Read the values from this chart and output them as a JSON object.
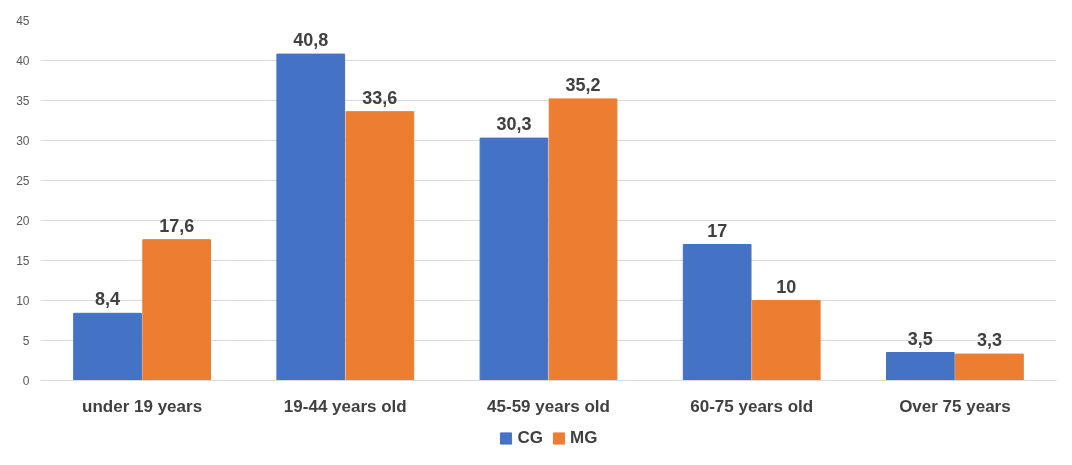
{
  "chart_data": {
    "type": "bar",
    "categories": [
      "under 19 years",
      "19-44 years old",
      "45-59 years old",
      "60-75 years old",
      "Over 75 years"
    ],
    "series": [
      {
        "name": "CG",
        "color": "#4472c4",
        "values": [
          8.4,
          40.8,
          30.3,
          17,
          3.5
        ],
        "value_labels": [
          "8,4",
          "40,8",
          "30,3",
          "17",
          "3,5"
        ]
      },
      {
        "name": "MG",
        "color": "#ed7d31",
        "values": [
          17.6,
          33.6,
          35.2,
          10,
          3.3
        ],
        "value_labels": [
          "17,6",
          "33,6",
          "35,2",
          "10",
          "3,3"
        ]
      }
    ],
    "ylim": [
      0,
      45
    ],
    "yticks": [
      0,
      5,
      10,
      15,
      20,
      25,
      30,
      35,
      40,
      45
    ],
    "grid": "y",
    "legend": "bottom"
  }
}
